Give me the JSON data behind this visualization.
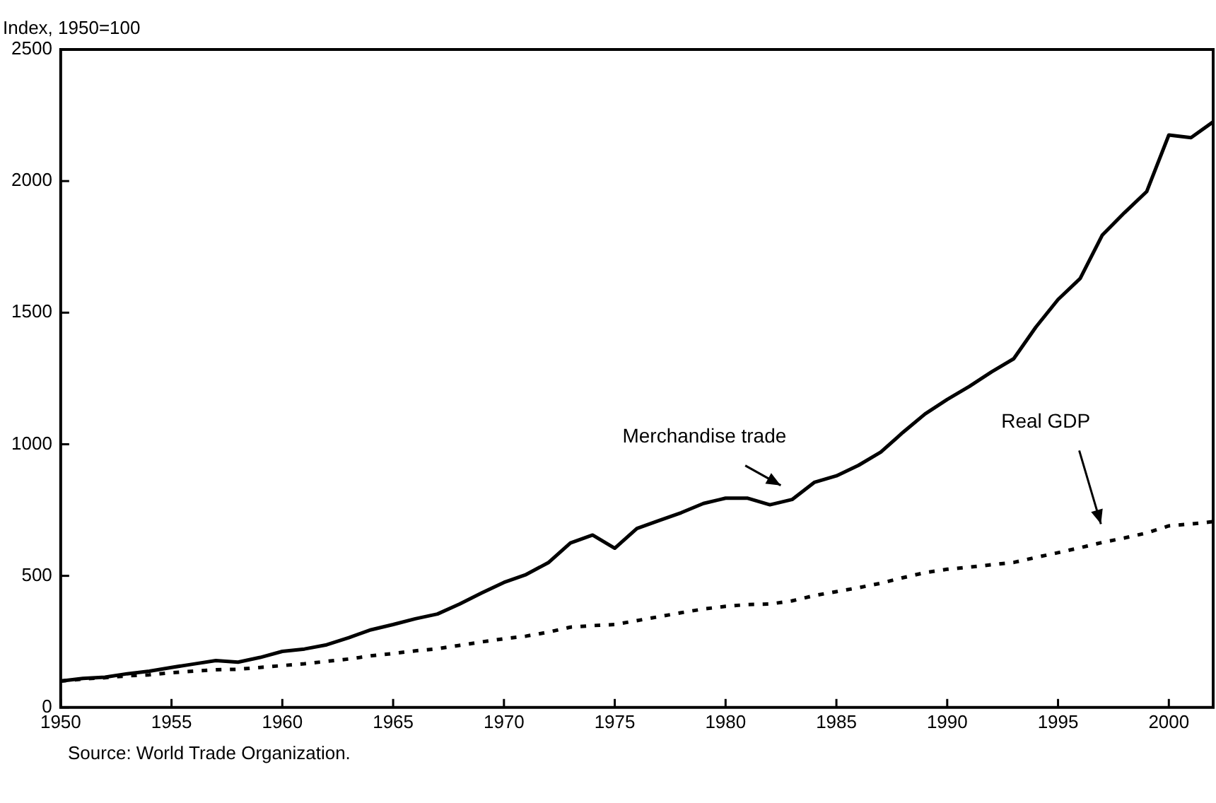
{
  "chart_data": {
    "type": "line",
    "ylabel": "Index, 1950=100",
    "x": [
      1950,
      1951,
      1952,
      1953,
      1954,
      1955,
      1956,
      1957,
      1958,
      1959,
      1960,
      1961,
      1962,
      1963,
      1964,
      1965,
      1966,
      1967,
      1968,
      1969,
      1970,
      1971,
      1972,
      1973,
      1974,
      1975,
      1976,
      1977,
      1978,
      1979,
      1980,
      1981,
      1982,
      1983,
      1984,
      1985,
      1986,
      1987,
      1988,
      1989,
      1990,
      1991,
      1992,
      1993,
      1994,
      1995,
      1996,
      1997,
      1998,
      1999,
      2000,
      2001,
      2002
    ],
    "series": [
      {
        "name": "Merchandise trade",
        "color": "#000000",
        "line_style": "solid",
        "values": [
          100,
          110,
          115,
          128,
          138,
          152,
          165,
          178,
          172,
          190,
          213,
          222,
          238,
          265,
          295,
          315,
          337,
          355,
          393,
          435,
          475,
          505,
          550,
          625,
          655,
          605,
          680,
          710,
          740,
          775,
          795,
          795,
          770,
          790,
          855,
          880,
          920,
          970,
          1045,
          1115,
          1170,
          1220,
          1275,
          1325,
          1445,
          1550,
          1630,
          1795,
          1880,
          1960,
          2175,
          2165,
          2225
        ]
      },
      {
        "name": "Real GDP",
        "color": "#000000",
        "line_style": "dotted",
        "values": [
          100,
          108,
          113,
          120,
          124,
          132,
          138,
          143,
          145,
          152,
          159,
          166,
          175,
          184,
          196,
          205,
          215,
          223,
          236,
          249,
          261,
          271,
          286,
          305,
          311,
          315,
          330,
          345,
          360,
          374,
          384,
          391,
          393,
          405,
          425,
          440,
          455,
          472,
          493,
          512,
          525,
          533,
          542,
          551,
          570,
          588,
          607,
          627,
          644,
          663,
          690,
          697,
          706
        ]
      }
    ],
    "xlim": [
      1950,
      2002
    ],
    "xticks": [
      1950,
      1955,
      1960,
      1965,
      1970,
      1975,
      1980,
      1985,
      1990,
      1995,
      2000
    ],
    "ylim": [
      0,
      2500
    ],
    "yticks": [
      0,
      500,
      1000,
      1500,
      2000,
      2500
    ],
    "grid": false,
    "legend": false,
    "marker": "none",
    "annotations": [
      "Source: World Trade Organization."
    ]
  }
}
